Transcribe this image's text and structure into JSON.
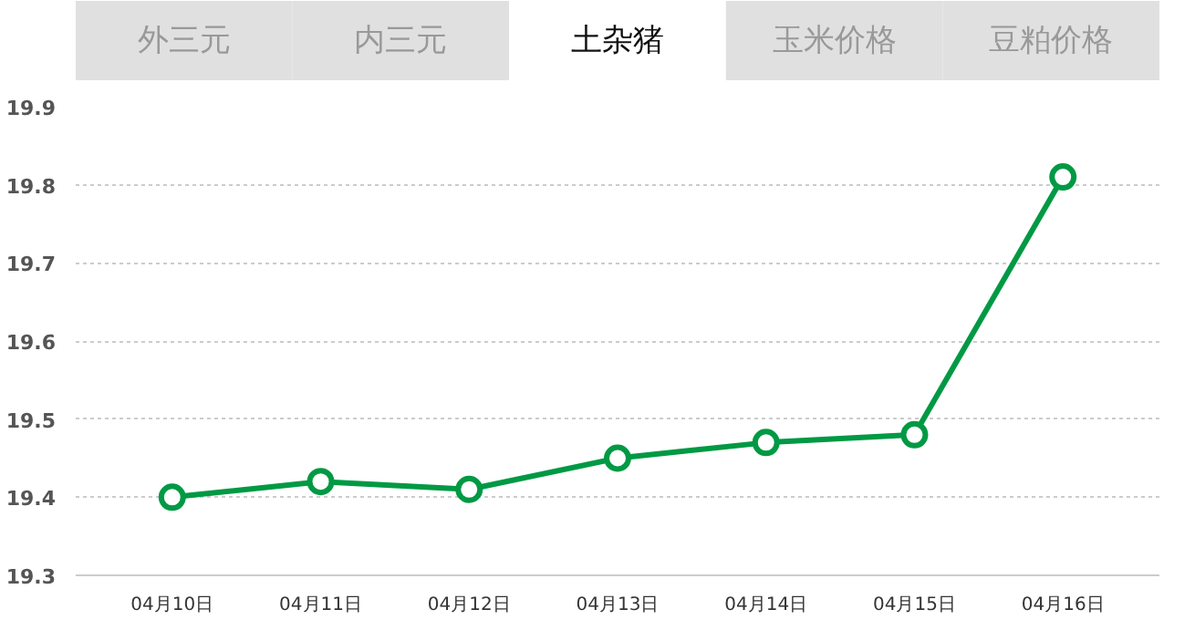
{
  "chart_data": {
    "type": "line",
    "title": "土杂猪",
    "annotations": [
      "外三元",
      "内三元",
      "玉米价格",
      "豆粕价格"
    ],
    "categories": [
      "04月10日",
      "04月11日",
      "04月12日",
      "04月13日",
      "04月14日",
      "04月15日",
      "04月16日"
    ],
    "series": [
      {
        "color": "#009944",
        "values": [
          19.4,
          19.42,
          19.41,
          19.45,
          19.47,
          19.48,
          19.81
        ]
      }
    ],
    "ylim": [
      19.3,
      19.9
    ],
    "yticks": [
      19.3,
      19.4,
      19.5,
      19.6,
      19.7,
      19.8,
      19.9
    ],
    "grid": "y",
    "marker": "circle",
    "line_style": "solid"
  }
}
